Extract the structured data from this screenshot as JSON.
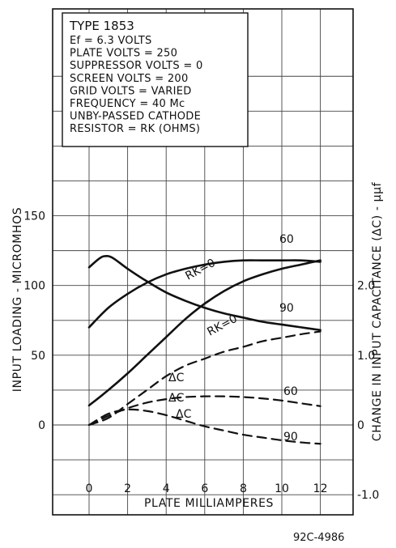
{
  "chart_data": {
    "type": "line",
    "title": "TYPE 1853",
    "conditions": [
      "Ef = 6.3 VOLTS",
      "PLATE  VOLTS = 250",
      "SUPPRESSOR VOLTS = 0",
      "SCREEN  VOLTS = 200",
      "GRID  VOLTS = VARIED",
      "FREQUENCY = 40 Mc",
      "UNBY-PASSED CATHODE",
      "RESISTOR = RK (OHMS)"
    ],
    "xlabel": "PLATE  MILLIAMPERES",
    "ylabel_left": "INPUT LOADING - MICROMHOS",
    "ylabel_right": "CHANGE IN INPUT CAPACITANCE (ΔC) - μμf",
    "figure_id": "92C-4986",
    "x_ticks": [
      0,
      2,
      4,
      6,
      8,
      10,
      12
    ],
    "y_left_ticks": [
      0,
      50,
      100,
      150
    ],
    "y_right_ticks": [
      "-1.0",
      "0",
      "1.0",
      "2.0"
    ],
    "xlim": [
      -2,
      14
    ],
    "ylim_left": [
      -50,
      250
    ],
    "ylim_right": [
      -1.0,
      5.0
    ],
    "grid": true,
    "series": [
      {
        "label": "RK=0",
        "axis": "left",
        "style": "solid",
        "x": [
          0,
          1,
          2,
          3,
          4,
          5,
          6,
          7,
          8,
          9,
          10,
          11,
          12
        ],
        "y": [
          14,
          25,
          37,
          50,
          63,
          76,
          87,
          96,
          103,
          108,
          112,
          115,
          118
        ]
      },
      {
        "label": "60",
        "axis": "left",
        "style": "solid",
        "x": [
          0,
          1,
          2,
          3,
          4,
          5,
          6,
          7,
          8,
          9,
          10,
          11,
          12
        ],
        "y": [
          70,
          84,
          94,
          102,
          108,
          112,
          115,
          117,
          118,
          118,
          118,
          118,
          117
        ]
      },
      {
        "label": "90",
        "axis": "left",
        "style": "solid",
        "x": [
          0,
          0.5,
          0.8,
          1.2,
          2,
          3,
          4,
          5,
          6,
          7,
          8,
          9,
          10,
          11,
          12
        ],
        "y": [
          113,
          119,
          121,
          120,
          112,
          103,
          95,
          89,
          84,
          80,
          77,
          74,
          72,
          70,
          68
        ]
      },
      {
        "label": "RK=0",
        "axis": "right",
        "style": "dashed",
        "delta_c_label": "ΔC",
        "x": [
          0,
          1,
          2,
          3,
          4,
          5,
          6,
          7,
          8,
          9,
          10,
          11,
          12
        ],
        "y": [
          0,
          0.1,
          0.3,
          0.5,
          0.7,
          0.85,
          0.95,
          1.05,
          1.12,
          1.2,
          1.25,
          1.3,
          1.34
        ]
      },
      {
        "label": "60",
        "axis": "right",
        "style": "dashed",
        "delta_c_label": "ΔC",
        "x": [
          0,
          1,
          2,
          3,
          4,
          5,
          6,
          7,
          8,
          9,
          10,
          11,
          12
        ],
        "y": [
          0,
          0.13,
          0.24,
          0.32,
          0.37,
          0.4,
          0.41,
          0.41,
          0.4,
          0.38,
          0.35,
          0.31,
          0.27
        ]
      },
      {
        "label": "90",
        "axis": "right",
        "style": "dashed",
        "delta_c_label": "ΔC",
        "x": [
          0,
          1,
          2,
          3,
          4,
          5,
          6,
          7,
          8,
          9,
          10,
          11,
          12
        ],
        "y": [
          0,
          0.16,
          0.22,
          0.2,
          0.14,
          0.06,
          -0.02,
          -0.08,
          -0.14,
          -0.18,
          -0.22,
          -0.25,
          -0.27
        ]
      }
    ]
  }
}
